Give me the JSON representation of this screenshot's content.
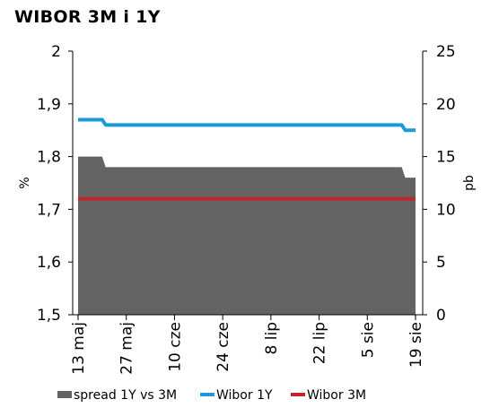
{
  "chart_data": {
    "type": "area+line",
    "title": "WIBOR 3M i 1Y",
    "ylabel_left": "%",
    "ylabel_right": "pb",
    "ylim_left": [
      1.5,
      2.0
    ],
    "yticks_left": [
      "1,5",
      "1,6",
      "1,7",
      "1,8",
      "1,9",
      "2"
    ],
    "ylim_right": [
      0,
      25
    ],
    "yticks_right": [
      "0",
      "5",
      "10",
      "15",
      "20",
      "25"
    ],
    "x_tick_labels": [
      "13 maj",
      "27 maj",
      "10 cze",
      "24 cze",
      "8 lip",
      "22 lip",
      "5 sie",
      "19 sie"
    ],
    "x": [
      "13 maj",
      "20 maj",
      "21 maj",
      "19 sie"
    ],
    "series": [
      {
        "name": "spread 1Y vs 3M",
        "kind": "area",
        "axis": "right",
        "color": "#636363",
        "points": [
          [
            "13 maj",
            15
          ],
          [
            "20 maj",
            15
          ],
          [
            "21 maj",
            14
          ],
          [
            "15 sie",
            14
          ],
          [
            "16 sie",
            13
          ],
          [
            "19 sie",
            13
          ]
        ]
      },
      {
        "name": "Wibor  1Y",
        "kind": "line",
        "axis": "left",
        "color": "#1a9ad6",
        "points": [
          [
            "13 maj",
            1.87
          ],
          [
            "20 maj",
            1.87
          ],
          [
            "21 maj",
            1.86
          ],
          [
            "15 sie",
            1.86
          ],
          [
            "16 sie",
            1.85
          ],
          [
            "19 sie",
            1.85
          ]
        ]
      },
      {
        "name": "Wibor  3M",
        "kind": "line",
        "axis": "left",
        "color": "#c0272d",
        "points": [
          [
            "13 maj",
            1.72
          ],
          [
            "19 sie",
            1.72
          ]
        ]
      }
    ],
    "legend_position": "bottom",
    "grid": false
  }
}
